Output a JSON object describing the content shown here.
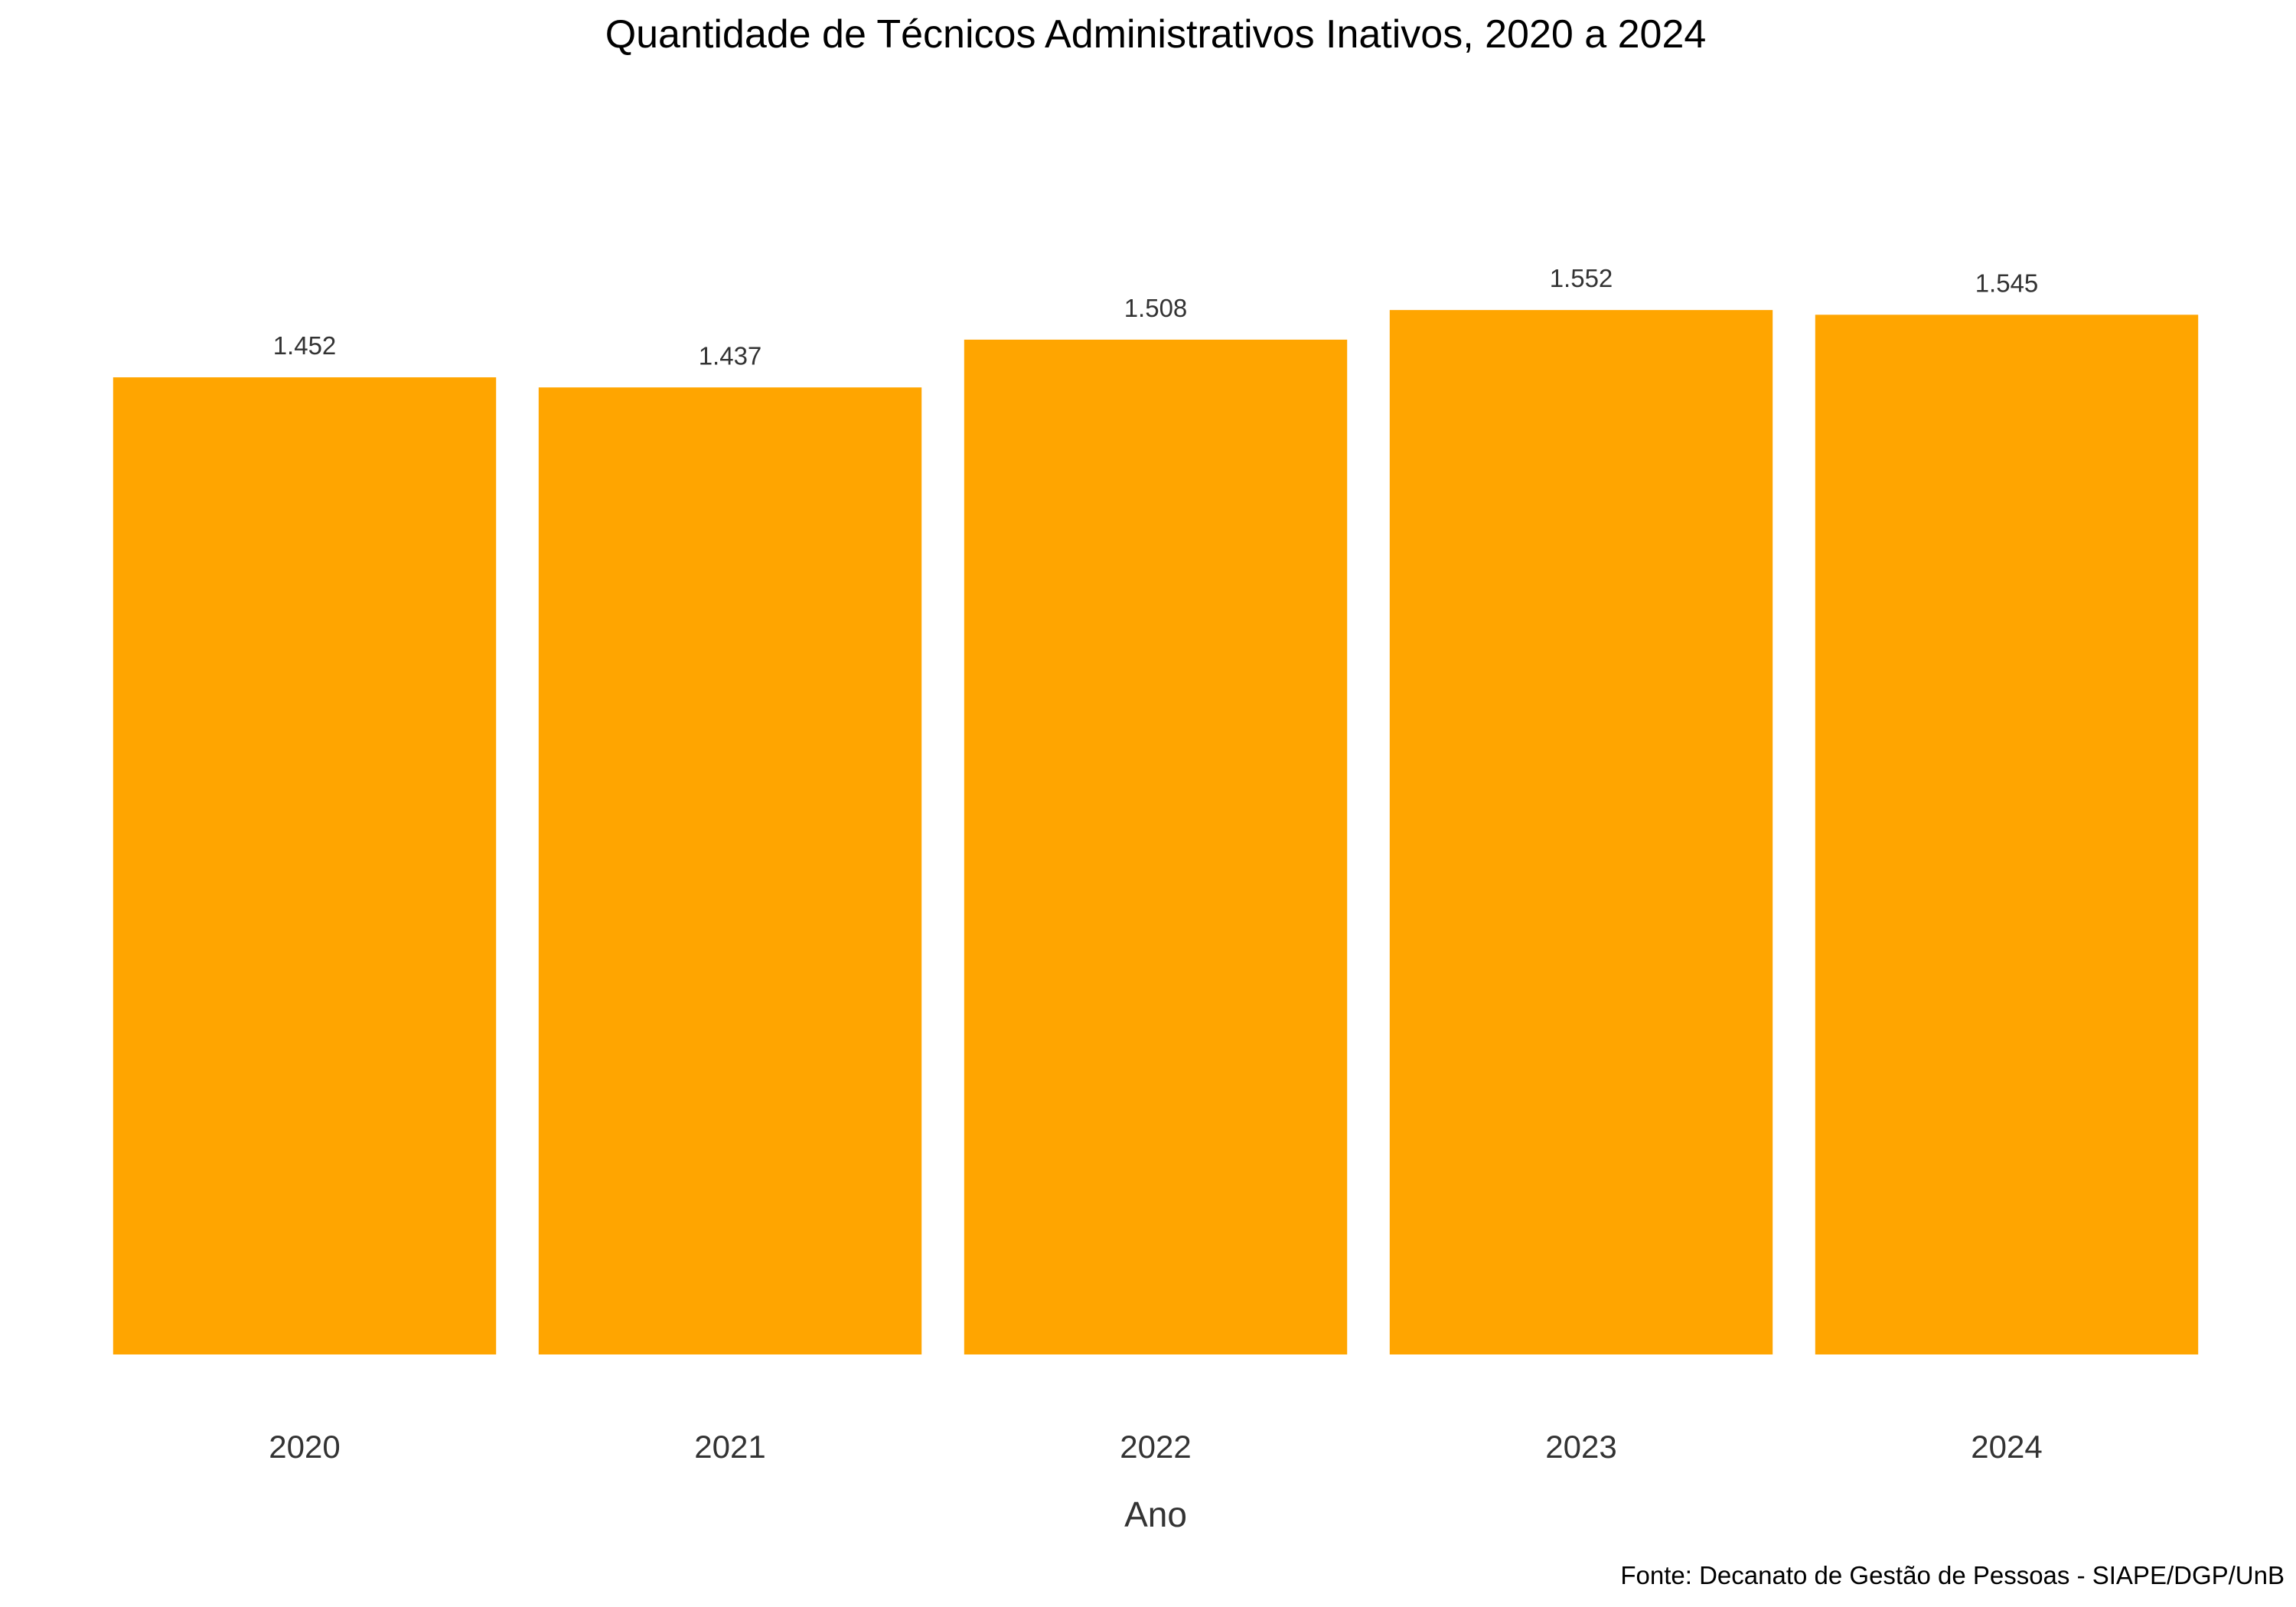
{
  "chart_data": {
    "type": "bar",
    "title": "Quantidade de Técnicos Administrativos Inativos, 2020 a 2024",
    "xlabel": "Ano",
    "ylabel": "",
    "categories": [
      "2020",
      "2021",
      "2022",
      "2023",
      "2024"
    ],
    "values": [
      1452,
      1437,
      1508,
      1552,
      1545
    ],
    "data_labels": [
      "1.452",
      "1.437",
      "1.508",
      "1.552",
      "1.545"
    ],
    "ylim": [
      0,
      1700
    ],
    "grid": false,
    "legend": "none",
    "bar_color": "#FFA500",
    "caption": "Fonte: Decanato de Gestão de Pessoas - SIAPE/DGP/UnB"
  }
}
